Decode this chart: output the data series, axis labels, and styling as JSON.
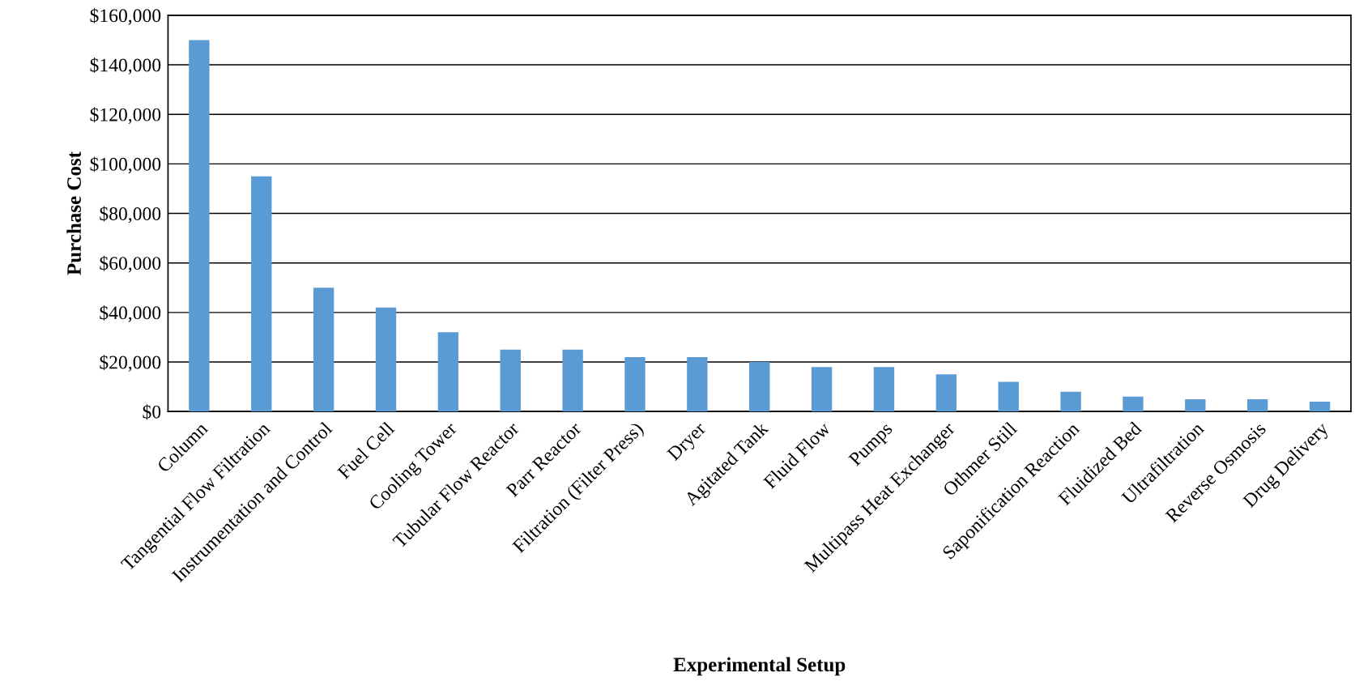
{
  "chart_data": {
    "type": "bar",
    "xlabel": "Experimental Setup",
    "ylabel": "Purchase Cost",
    "categories": [
      "Column",
      "Tangential Flow Filtration",
      "Instrumentation and Control",
      "Fuel Cell",
      "Cooling Tower",
      "Tubular Flow Reactor",
      "Parr Reactor",
      "Filtration (Filter Press)",
      "Dryer",
      "Agitated Tank",
      "Fluid Flow",
      "Pumps",
      "Multipass Heat Exchanger",
      "Othmer Still",
      "Saponification Reaction",
      "Fluidized Bed",
      "Ultrafiltration",
      "Reverse Osmosis",
      "Drug Delivery"
    ],
    "values": [
      150000,
      95000,
      50000,
      42000,
      32000,
      25000,
      25000,
      22000,
      22000,
      20000,
      18000,
      18000,
      15000,
      12000,
      8000,
      6000,
      5000,
      5000,
      4000
    ],
    "color": "#5b9bd5",
    "ylim": [
      0,
      160000
    ],
    "yticks": [
      {
        "value": 0,
        "label": "$0"
      },
      {
        "value": 20000,
        "label": "$20,000"
      },
      {
        "value": 40000,
        "label": "$40,000"
      },
      {
        "value": 60000,
        "label": "$60,000"
      },
      {
        "value": 80000,
        "label": "$80,000"
      },
      {
        "value": 100000,
        "label": "$100,000"
      },
      {
        "value": 120000,
        "label": "$120,000"
      },
      {
        "value": 140000,
        "label": "$140,000"
      },
      {
        "value": 160000,
        "label": "$160,000"
      }
    ],
    "grid": "y",
    "legend": false
  }
}
